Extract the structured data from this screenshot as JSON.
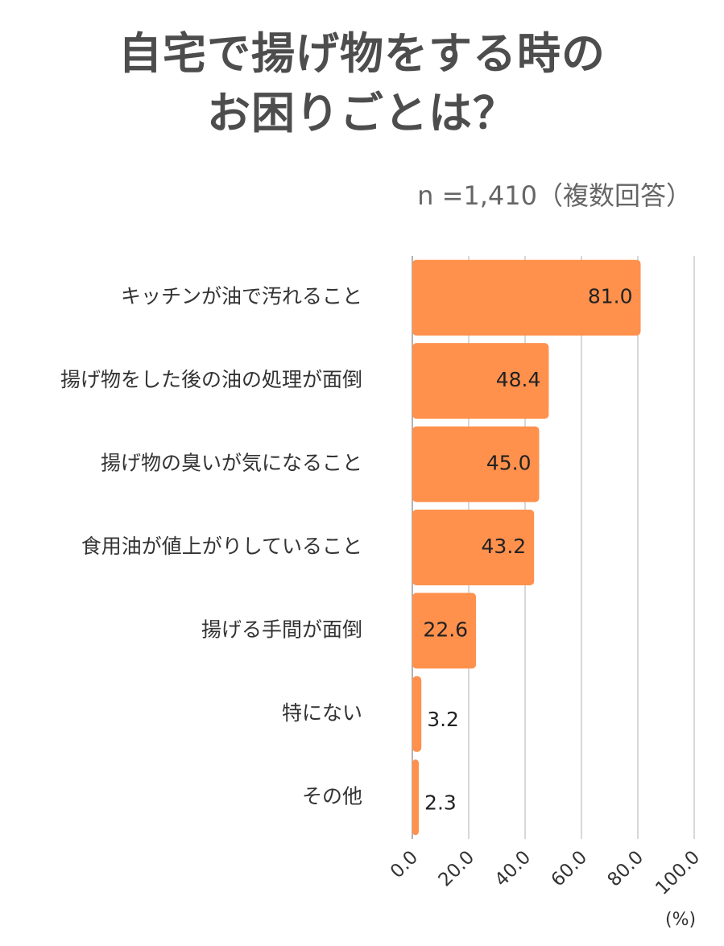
{
  "chart_data": {
    "type": "bar",
    "orientation": "horizontal",
    "title_lines": [
      "自宅で揚げ物をする時の",
      "お困りごとは？"
    ],
    "subtitle": "n =1,410（複数回答）",
    "categories": [
      "キッチンが油で汚れること",
      "揚げ物をした後の油の処理が面倒",
      "揚げ物の臭いが気になること",
      "食用油が値上がりしていること",
      "揚げる手間が面倒",
      "特にない",
      "その他"
    ],
    "values": [
      81.0,
      48.4,
      45.0,
      43.2,
      22.6,
      3.2,
      2.3
    ],
    "value_labels": [
      "81.0",
      "48.4",
      "45.0",
      "43.2",
      "22.6",
      "3.2",
      "2.3"
    ],
    "xlim": [
      0,
      100
    ],
    "x_ticks": [
      "0.0",
      "20.0",
      "40.0",
      "60.0",
      "80.0",
      "100.0"
    ],
    "x_unit": "(%)",
    "grid": true,
    "bar_color": "#FF914D",
    "grid_color": "#cccccc"
  }
}
